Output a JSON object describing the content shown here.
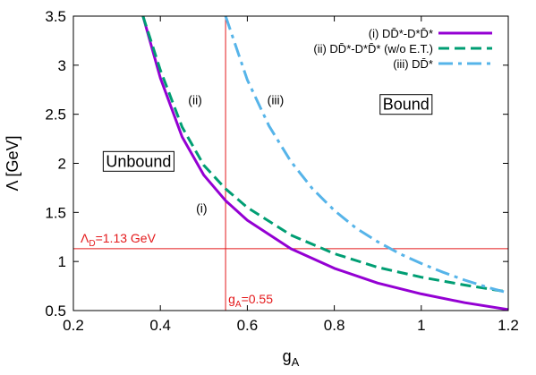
{
  "chart_data": {
    "type": "line",
    "xlabel": "g",
    "xlabel_sub": "A",
    "ylabel": "Λ [GeV]",
    "xlim": [
      0.2,
      1.2
    ],
    "ylim": [
      0.5,
      3.5
    ],
    "xticks": [
      "0.2",
      "0.4",
      "0.6",
      "0.8",
      "1",
      "1.2"
    ],
    "yticks": [
      "0.5",
      "1",
      "1.5",
      "2",
      "2.5",
      "3",
      "3.5"
    ],
    "legend_position": "top-right",
    "grid": false,
    "series": [
      {
        "name": "(i) DD̄*-D*D̄*",
        "color": "#9400d3",
        "style": "solid",
        "x": [
          0.36,
          0.4,
          0.45,
          0.5,
          0.55,
          0.6,
          0.7,
          0.8,
          0.9,
          1.0,
          1.1,
          1.2
        ],
        "y": [
          3.5,
          2.87,
          2.27,
          1.88,
          1.62,
          1.42,
          1.13,
          0.93,
          0.78,
          0.67,
          0.58,
          0.51
        ]
      },
      {
        "name": "(ii) DD̄*-D*D̄* (w/o E.T.)",
        "color": "#009e73",
        "style": "dashed",
        "x": [
          0.36,
          0.4,
          0.45,
          0.5,
          0.55,
          0.6,
          0.7,
          0.8,
          0.9,
          1.0,
          1.1,
          1.2
        ],
        "y": [
          3.5,
          2.95,
          2.37,
          1.98,
          1.74,
          1.55,
          1.27,
          1.08,
          0.94,
          0.84,
          0.76,
          0.69
        ]
      },
      {
        "name": "(iii) DD̄*",
        "color": "#56b4e9",
        "style": "dash-dot",
        "x": [
          0.55,
          0.6,
          0.65,
          0.7,
          0.75,
          0.8,
          0.85,
          0.9,
          0.95,
          1.0,
          1.05,
          1.1,
          1.15,
          1.2
        ],
        "y": [
          3.5,
          2.85,
          2.38,
          2.02,
          1.74,
          1.52,
          1.34,
          1.2,
          1.08,
          0.98,
          0.89,
          0.81,
          0.74,
          0.68
        ]
      }
    ],
    "reference_lines": {
      "vertical": {
        "x": 0.55,
        "label": "g",
        "label_sub": "A",
        "label_suffix": "=0.55",
        "color": "#e41a1c"
      },
      "horizontal": {
        "y": 1.13,
        "label": "Λ",
        "label_sub": "D",
        "label_suffix": "=1.13 GeV",
        "color": "#e41a1c"
      }
    },
    "annotations": [
      {
        "text": "(ii)",
        "x": 0.48,
        "y": 2.6
      },
      {
        "text": "(iii)",
        "x": 0.665,
        "y": 2.6
      },
      {
        "text": "(i)",
        "x": 0.495,
        "y": 1.5
      }
    ],
    "boxed_labels": [
      {
        "text": "Unbound",
        "x": 0.35,
        "y": 2.02
      },
      {
        "text": "Bound",
        "x": 0.965,
        "y": 2.6
      }
    ]
  }
}
